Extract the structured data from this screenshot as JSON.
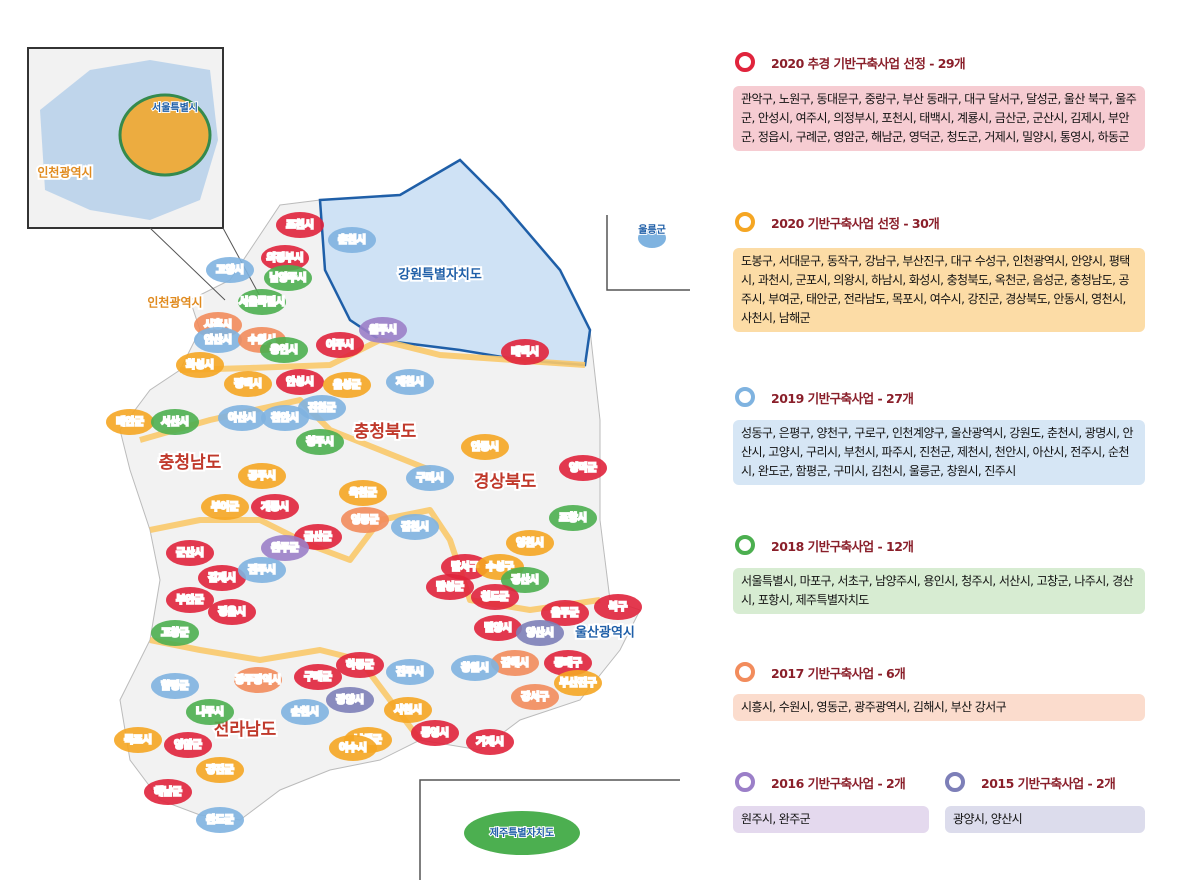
{
  "map": {
    "labels": [
      "강원특별자치도",
      "충청북도",
      "충청남도",
      "경상북도",
      "전라남도",
      "인천광역시",
      "울산광역시",
      "제주특별자치도",
      "울릉군",
      "서울특별시",
      "인천광역시",
      "포천시",
      "춘천시",
      "의정부시",
      "고양시",
      "남양주시",
      "서울특별시",
      "시흥시",
      "안산시",
      "수원시",
      "용인시",
      "여주시",
      "원주시",
      "태백시",
      "평택시",
      "안성시",
      "음성군",
      "제천시",
      "화성시",
      "태안군",
      "서산시",
      "아산시",
      "천안시",
      "진천군",
      "청주시",
      "공주시",
      "안동시",
      "영덕군",
      "부여군",
      "계룡시",
      "옥천군",
      "영동군",
      "금산군",
      "구미시",
      "김천시",
      "포항시",
      "영천시",
      "군산시",
      "완주군",
      "김제시",
      "전주시",
      "부안군",
      "정읍시",
      "달서구",
      "수성구",
      "경산시",
      "달성군",
      "청도군",
      "울주군",
      "북구",
      "밀양시",
      "양산시",
      "고창군",
      "김해시",
      "동래구",
      "창원시",
      "부산진구",
      "강서구",
      "광주광역시",
      "하동군",
      "진주시",
      "구례군",
      "함평군",
      "광양시",
      "순천시",
      "사천시",
      "나주시",
      "통영시",
      "거제시",
      "남해군",
      "여수시",
      "영암군",
      "목포시",
      "강진군",
      "해남군",
      "완도군"
    ]
  },
  "legend": [
    {
      "title": "2020 추경 기반구축사업 선정 - 29개",
      "items": "관악구, 노원구, 동대문구, 중랑구, 부산 동래구, 대구 달서구, 달성군, 울산 북구, 울주군, 안성시, 여주시, 의정부시, 포천시, 태백시, 계룡시, 금산군, 군산시, 김제시, 부안군, 정읍시, 구례군, 영암군, 해남군, 영덕군, 청도군, 거제시, 밀양시, 통영시, 하동군"
    },
    {
      "title": "2020 기반구축사업 선정 - 30개",
      "items": "도봉구, 서대문구, 동작구, 강남구, 부산진구, 대구 수성구, 인천광역시, 안양시, 평택시, 과천시, 군포시, 의왕시, 하남시, 화성시, 충청북도, 옥천군, 음성군, 충청남도, 공주시, 부여군, 태안군, 전라남도, 목포시, 여수시, 강진군, 경상북도, 안동시, 영천시, 사천시, 남해군"
    },
    {
      "title": "2019 기반구축사업 - 27개",
      "items": "성동구, 은평구, 양천구, 구로구, 인천계양구, 울산광역시, 강원도, 춘천시, 광명시, 안산시, 고양시, 구리시, 부천시, 파주시, 진천군, 제천시, 천안시, 아산시, 전주시, 순천시, 완도군, 함평군, 구미시, 김천시, 울릉군, 창원시, 진주시"
    },
    {
      "title": "2018 기반구축사업 - 12개",
      "items": "서울특별시, 마포구, 서초구, 남양주시, 용인시, 청주시, 서산시, 고창군, 나주시, 경산시, 포항시, 제주특별자치도"
    },
    {
      "title": "2017 기반구축사업 - 6개",
      "items": "시흥시, 수원시, 영동군, 광주광역시, 김해시, 부산 강서구"
    },
    {
      "title": "2016 기반구축사업 - 2개",
      "items": "원주시, 완주군"
    },
    {
      "title": "2015 기반구축사업 - 2개",
      "items": "광양시, 양산시"
    }
  ]
}
